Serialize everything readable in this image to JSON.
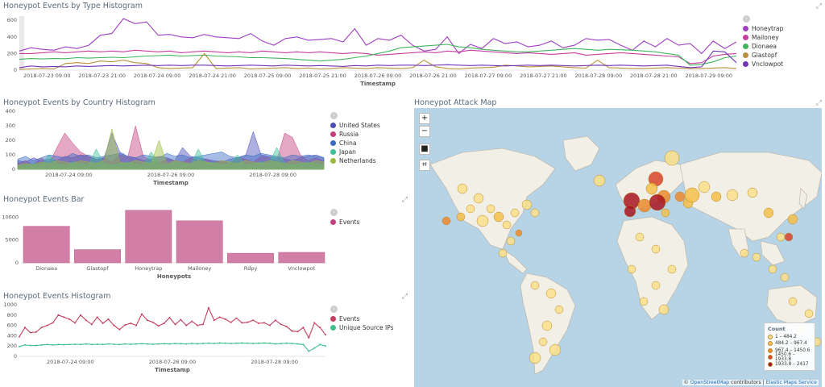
{
  "panels": {
    "type_hist": {
      "title": "Honeypot Events by Type Histogram",
      "y_ticks": [
        "600",
        "400",
        "200",
        "0"
      ],
      "x_ticks": [
        "2018-07-23 09:00",
        "2018-07-23 21:00",
        "2018-07-24 09:00",
        "2018-07-24 21:00",
        "2018-07-25 09:00",
        "2018-07-25 21:00",
        "2018-07-26 09:00",
        "2018-07-26 21:00",
        "2018-07-27 09:00",
        "2018-07-27 21:00",
        "2018-07-28 09:00",
        "2018-07-28 21:00",
        "2018-07-29 09:00"
      ],
      "xlabel": "Timestamp",
      "legend": [
        {
          "name": "Honeytrap",
          "color": "#a13ec3"
        },
        {
          "name": "Mailoney",
          "color": "#c43ea0"
        },
        {
          "name": "Dionaea",
          "color": "#3fb55e"
        },
        {
          "name": "Glastopf",
          "color": "#b8913a"
        },
        {
          "name": "Vnclowpot",
          "color": "#7133b8"
        }
      ]
    },
    "country_hist": {
      "title": "Honeypot Events by Country Histogram",
      "y_ticks": [
        "400",
        "300",
        "200",
        "100",
        "0"
      ],
      "x_ticks": [
        "2018-07-24 09:00",
        "2018-07-26 09:00",
        "2018-07-28 09:00"
      ],
      "xlabel": "Timestamp",
      "legend": [
        {
          "name": "United States",
          "color": "#4a4fb5"
        },
        {
          "name": "Russia",
          "color": "#c43e7e"
        },
        {
          "name": "China",
          "color": "#3a6bc4"
        },
        {
          "name": "Japan",
          "color": "#3fbf9a"
        },
        {
          "name": "Netherlands",
          "color": "#9aba3a"
        }
      ]
    },
    "bar": {
      "title": "Honeypot Events Bar",
      "y_ticks": [
        "10000",
        "5000",
        "0"
      ],
      "xlabel": "Honeypots",
      "legend": [
        {
          "name": "Events",
          "color": "#c43e7e"
        }
      ]
    },
    "events_hist": {
      "title": "Honeypot Events Histogram",
      "y_ticks": [
        "1000",
        "800",
        "600",
        "400",
        "200",
        "0"
      ],
      "x_ticks": [
        "2018-07-24 09:00",
        "2018-07-26 09:00",
        "2018-07-28 09:00"
      ],
      "xlabel": "Timestamp",
      "legend": [
        {
          "name": "Events",
          "color": "#c43e5e"
        },
        {
          "name": "Unique Source IPs",
          "color": "#3fbf8a"
        }
      ]
    },
    "map": {
      "title": "Honeypot Attack Map",
      "zoom_in": "+",
      "zoom_out": "−",
      "legend_title": "Count",
      "legend": [
        {
          "range": "1 – 484.2",
          "color": "#fbe08a"
        },
        {
          "range": "484.2 – 967.4",
          "color": "#f6c04a"
        },
        {
          "range": "967.4 – 1450.6",
          "color": "#ec8a2e"
        },
        {
          "range": "1450.6 – 1933.8",
          "color": "#d9442a"
        },
        {
          "range": "1933.8 – 2417",
          "color": "#a8141e"
        }
      ],
      "attribution_prefix": "©",
      "attribution_osm": "OpenStreetMap",
      "attribution_mid": "contributors |",
      "attribution_ems": "Elastic Maps Service"
    }
  },
  "chart_data": [
    {
      "type": "line",
      "title": "Honeypot Events by Type Histogram",
      "xlabel": "Timestamp",
      "ylim": [
        0,
        650
      ],
      "series": [
        {
          "name": "Honeytrap",
          "values": [
            230,
            270,
            250,
            240,
            280,
            260,
            300,
            420,
            440,
            620,
            560,
            580,
            420,
            430,
            400,
            390,
            430,
            400,
            390,
            380,
            440,
            350,
            300,
            380,
            400,
            360,
            370,
            380,
            340,
            500,
            300,
            380,
            360,
            420,
            300,
            230,
            250,
            400,
            200,
            310,
            260,
            380,
            320,
            340,
            280,
            300,
            350,
            270,
            300,
            380,
            360,
            370,
            300,
            240,
            350,
            280,
            380,
            300,
            320,
            200,
            350,
            260,
            340
          ]
        },
        {
          "name": "Mailoney",
          "values": [
            200,
            200,
            210,
            220,
            210,
            220,
            230,
            220,
            230,
            220,
            240,
            230,
            220,
            230,
            210,
            220,
            230,
            220,
            210,
            220,
            210,
            230,
            220,
            210,
            220,
            210,
            220,
            210,
            200,
            210,
            200,
            180,
            190,
            200,
            210,
            220,
            210,
            230,
            220,
            240,
            230,
            220,
            210,
            200,
            210,
            200,
            190,
            200,
            210,
            180,
            190,
            200,
            210,
            200,
            190,
            180,
            170,
            160,
            80,
            90,
            170,
            190,
            200
          ]
        },
        {
          "name": "Dionaea",
          "values": [
            130,
            140,
            135,
            140,
            138,
            150,
            145,
            150,
            155,
            150,
            160,
            170,
            175,
            180,
            170,
            175,
            180,
            170,
            165,
            160,
            150,
            150,
            145,
            140,
            130,
            120,
            110,
            120,
            130,
            150,
            170,
            200,
            230,
            270,
            280,
            290,
            300,
            310,
            280,
            270,
            250,
            240,
            230,
            220,
            220,
            230,
            240,
            250,
            260,
            250,
            240,
            250,
            245,
            240,
            230,
            220,
            200,
            180,
            60,
            70,
            100,
            150,
            170
          ]
        },
        {
          "name": "Glastopf",
          "values": [
            10,
            15,
            20,
            15,
            80,
            90,
            80,
            110,
            100,
            120,
            90,
            80,
            30,
            20,
            25,
            30,
            200,
            20,
            25,
            30,
            15,
            20,
            25,
            30,
            20,
            25,
            15,
            20,
            30,
            25,
            20,
            30,
            25,
            20,
            30,
            120,
            40,
            20,
            15,
            25,
            30,
            35,
            60,
            50,
            40,
            45,
            50,
            40,
            30,
            25,
            120,
            30,
            25,
            20,
            20,
            25,
            30,
            25,
            20,
            20,
            25,
            30,
            20
          ]
        },
        {
          "name": "Vnclowpot",
          "values": [
            30,
            50,
            40,
            45,
            40,
            50,
            45,
            50,
            55,
            50,
            55,
            60,
            55,
            60,
            55,
            60,
            60,
            55,
            50,
            55,
            60,
            55,
            50,
            60,
            55,
            50,
            55,
            50,
            45,
            55,
            50,
            60,
            55,
            60,
            60,
            55,
            60,
            65,
            60,
            55,
            60,
            55,
            50,
            55,
            60,
            55,
            60,
            55,
            50,
            55,
            60,
            55,
            60,
            55,
            50,
            55,
            60,
            45,
            30,
            40,
            230,
            220,
            90
          ]
        }
      ]
    },
    {
      "type": "area",
      "title": "Honeypot Events by Country Histogram",
      "xlabel": "Timestamp",
      "ylim": [
        0,
        400
      ],
      "series": [
        {
          "name": "United States",
          "values": [
            60,
            50,
            80,
            60,
            70,
            60,
            90,
            80,
            100,
            90,
            70,
            80,
            250,
            120,
            90,
            80,
            60,
            70,
            90,
            80,
            60,
            150,
            90,
            80,
            70,
            60,
            50,
            70,
            80,
            90,
            260,
            100,
            90,
            80,
            70,
            60,
            80,
            90,
            100,
            80
          ]
        },
        {
          "name": "Russia",
          "values": [
            40,
            60,
            30,
            80,
            40,
            150,
            250,
            180,
            120,
            90,
            60,
            80,
            50,
            100,
            80,
            300,
            90,
            60,
            40,
            70,
            60,
            50,
            80,
            60,
            70,
            50,
            60,
            40,
            80,
            70,
            50,
            90,
            80,
            60,
            250,
            220,
            100,
            60,
            80,
            60
          ]
        },
        {
          "name": "China",
          "values": [
            70,
            90,
            60,
            80,
            100,
            90,
            80,
            110,
            90,
            100,
            80,
            90,
            100,
            110,
            90,
            80,
            100,
            90,
            80,
            110,
            90,
            100,
            80,
            90,
            100,
            110,
            120,
            90,
            80,
            100,
            90,
            110,
            100,
            90,
            80,
            100,
            90,
            100,
            90,
            80
          ]
        },
        {
          "name": "Japan",
          "values": [
            20,
            30,
            40,
            30,
            100,
            40,
            30,
            50,
            40,
            30,
            140,
            40,
            30,
            40,
            50,
            40,
            30,
            120,
            40,
            30,
            50,
            40,
            30,
            140,
            40,
            50,
            30,
            40,
            100,
            30,
            40,
            50,
            40,
            150,
            40,
            30,
            40,
            50,
            40,
            30
          ]
        },
        {
          "name": "Netherlands",
          "values": [
            30,
            40,
            30,
            50,
            40,
            60,
            50,
            40,
            60,
            50,
            40,
            60,
            280,
            50,
            40,
            60,
            50,
            40,
            200,
            40,
            60,
            50,
            40,
            60,
            50,
            40,
            60,
            50,
            40,
            60,
            50,
            40,
            60,
            50,
            40,
            60,
            50,
            40,
            60,
            50
          ]
        }
      ]
    },
    {
      "type": "bar",
      "title": "Honeypot Events Bar",
      "xlabel": "Honeypots",
      "ylim": [
        0,
        12000
      ],
      "categories": [
        "Dionaea",
        "Glastopf",
        "Honeytrap",
        "Mailoney",
        "Rdpy",
        "Vnclowpot"
      ],
      "series": [
        {
          "name": "Events",
          "values": [
            8000,
            2900,
            11500,
            9200,
            2100,
            2300
          ]
        }
      ]
    },
    {
      "type": "line",
      "title": "Honeypot Events Histogram",
      "xlabel": "Timestamp",
      "ylim": [
        0,
        1000
      ],
      "series": [
        {
          "name": "Events",
          "values": [
            380,
            560,
            460,
            470,
            560,
            600,
            650,
            800,
            760,
            720,
            650,
            800,
            700,
            620,
            760,
            640,
            720,
            600,
            520,
            610,
            640,
            600,
            820,
            700,
            660,
            590,
            640,
            750,
            620,
            710,
            600,
            680,
            600,
            620,
            940,
            700,
            760,
            720,
            660,
            740,
            650,
            660,
            700,
            640,
            650,
            600,
            700,
            620,
            580,
            490,
            480,
            560,
            360,
            650,
            560,
            420
          ]
        },
        {
          "name": "Unique Source IPs",
          "values": [
            190,
            220,
            210,
            210,
            220,
            230,
            220,
            230,
            225,
            230,
            235,
            230,
            240,
            230,
            235,
            230,
            240,
            235,
            230,
            240,
            235,
            240,
            245,
            240,
            235,
            240,
            245,
            240,
            250,
            245,
            240,
            250,
            245,
            250,
            255,
            250,
            260,
            255,
            250,
            255,
            260,
            255,
            250,
            255,
            260,
            255,
            240,
            250,
            255,
            250,
            240,
            230,
            100,
            160,
            230,
            200
          ]
        }
      ]
    }
  ]
}
